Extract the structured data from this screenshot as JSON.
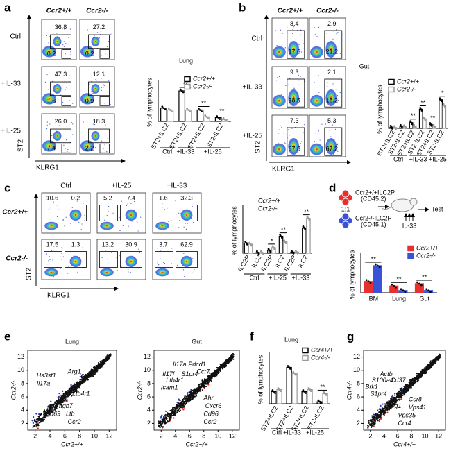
{
  "panel_a": {
    "label": "a",
    "columns": [
      "Ccr2+/+",
      "Ccr2-/-"
    ],
    "rows": [
      "Ctrl",
      "+IL-33",
      "+IL-25"
    ],
    "gates": [
      [
        [
          "36.8",
          "0.2"
        ],
        [
          "27.2",
          "0.2"
        ]
      ],
      [
        [
          "47.3",
          "1.6"
        ],
        [
          "12.1",
          "0.9"
        ]
      ],
      [
        [
          "26.0",
          "7.4"
        ],
        [
          "18.3",
          "2.2"
        ]
      ]
    ],
    "y_axis": "ST2",
    "x_axis": "KLRG1",
    "chart": {
      "type": "bar",
      "title": "Lung",
      "ylabel": "% of lymphocytes",
      "bar_style": "outline",
      "groups": [
        {
          "name": "Ctrl",
          "categories": [
            "ST2+ILC2"
          ]
        },
        {
          "name": "+IL-33",
          "categories": [
            "ST2+ILC2"
          ]
        },
        {
          "name": "+IL-25",
          "categories": [
            "ST2+ILC2",
            "ST2-ILC2"
          ]
        }
      ],
      "series": [
        {
          "name": "Ccr2+/+",
          "color": "#000000",
          "values": [
            0.35,
            0.8,
            0.3,
            0.1
          ]
        },
        {
          "name": "Ccr2-/-",
          "color": "#999999",
          "values": [
            0.3,
            0.3,
            0.12,
            0.05
          ]
        }
      ],
      "significance": [
        null,
        "**",
        "**",
        "**"
      ],
      "ylim": [
        0,
        1
      ]
    }
  },
  "panel_b": {
    "label": "b",
    "title": "Gut",
    "columns": [
      "Ccr2+/+",
      "Ccr2-/-"
    ],
    "rows": [
      "Ctrl",
      "+IL-33",
      "+IL-25"
    ],
    "gates": [
      [
        [
          "8.4",
          "17.6"
        ],
        [
          "2.9",
          "21.2"
        ]
      ],
      [
        [
          "9.3",
          "38.5"
        ],
        [
          "2.1",
          "18.2"
        ]
      ],
      [
        [
          "7.3",
          "67.8"
        ],
        [
          "5.3",
          "67.2"
        ]
      ]
    ],
    "y_axis": "ST2",
    "x_axis": "KLRG1",
    "chart": {
      "type": "bar",
      "ylabel": "% of lymphocytes",
      "bar_style": "outline",
      "groups": [
        {
          "name": "Ctrl",
          "categories": [
            "ST2+ILC2",
            "ST2-ILC2"
          ]
        },
        {
          "name": "+IL-33",
          "categories": [
            "ST2+ILC2",
            "ST2-ILC2"
          ]
        },
        {
          "name": "+IL-25",
          "categories": [
            "ST2+ILC2",
            "ST2-ILC2"
          ]
        }
      ],
      "series": [
        {
          "name": "Ccr2+/+",
          "color": "#000000",
          "values": [
            0.03,
            0.05,
            0.15,
            0.5,
            0.1,
            0.75
          ]
        },
        {
          "name": "Ccr2-/-",
          "color": "#999999",
          "values": [
            0.02,
            0.04,
            0.05,
            0.25,
            0.05,
            0.6
          ]
        }
      ],
      "significance": [
        null,
        null,
        "**",
        "**",
        "**",
        "*"
      ],
      "ylim": [
        0,
        1
      ]
    }
  },
  "panel_c": {
    "label": "c",
    "columns": [
      "Ctrl",
      "+IL-25",
      "+IL-33"
    ],
    "rows": [
      "Ccr2+/+",
      "Ccr2-/-"
    ],
    "gates": [
      [
        [
          "10.6",
          "0.2"
        ],
        [
          "5.2",
          "7.4"
        ],
        [
          "1.6",
          "32.3"
        ]
      ],
      [
        [
          "17.5",
          "1.3"
        ],
        [
          "13.2",
          "30.9"
        ],
        [
          "3.7",
          "62.9"
        ]
      ]
    ],
    "y_axis": "ST2",
    "x_axis": "KLRG1",
    "chart": {
      "type": "bar",
      "ylabel": "% of lymphocytes",
      "bar_style": "outline",
      "legend_boxes": false,
      "groups": [
        {
          "name": "Ctrl",
          "categories": [
            "ILC2P",
            "ILC2"
          ]
        },
        {
          "name": "+IL-25",
          "categories": [
            "ILC2P",
            "ILC2"
          ]
        },
        {
          "name": "+IL-33",
          "categories": [
            "ILC2P",
            "ILC2"
          ]
        }
      ],
      "series": [
        {
          "name": "Ccr2+/+",
          "color": "#000000",
          "values": [
            0.18,
            0.01,
            0.05,
            0.3,
            0.02,
            0.45
          ]
        },
        {
          "name": "Ccr2-/-",
          "color": "#999999",
          "values": [
            0.16,
            0.01,
            0.1,
            0.2,
            0.02,
            0.62
          ]
        }
      ],
      "significance": [
        null,
        null,
        "*",
        "**",
        null,
        "**"
      ],
      "ylim": [
        0,
        0.8
      ]
    }
  },
  "panel_d": {
    "label": "d",
    "schematic": {
      "donor_1": "Ccr2+/+ILC2P",
      "donor_1_marker": "(CD45.2)",
      "ratio": "1:1",
      "donor_2": "Ccr2-/-ILC2P",
      "donor_2_marker": "(CD45.1)",
      "treatment": "IL-33",
      "readout": "Test"
    },
    "chart": {
      "type": "bar",
      "ylabel": "% of lymphocytes",
      "bar_style": "solid",
      "categories": [
        "BM",
        "Lung",
        "Gut"
      ],
      "series": [
        {
          "name": "Ccr2+/+",
          "color": "#e8312f",
          "values": [
            0.25,
            0.15,
            0.2
          ]
        },
        {
          "name": "Ccr2-/-",
          "color": "#3a52d6",
          "values": [
            0.6,
            0.05,
            0.05
          ]
        }
      ],
      "significance": [
        "**",
        "**",
        "**"
      ],
      "ylim": [
        0,
        0.8
      ]
    }
  },
  "panel_e": {
    "label": "e",
    "plots": [
      {
        "type": "scatter",
        "title": "Lung",
        "xlabel": "Ccr2+/+",
        "ylabel": "Ccr2-/-",
        "xlim": [
          1,
          13
        ],
        "ylim": [
          1,
          13
        ],
        "xticks": [
          2,
          4,
          6,
          8,
          10,
          12
        ],
        "yticks": [
          2,
          4,
          6,
          8,
          10,
          12
        ],
        "genes": [
          "Hs3st1",
          "Il17a",
          "Arg1",
          "Icos",
          "Ltb4r1",
          "Itgb7",
          "Cd69",
          "Ltb",
          "Ccr2"
        ]
      },
      {
        "type": "scatter",
        "title": "Gut",
        "xlabel": "Ccr2+/+",
        "ylabel": "Ccr2-/-",
        "xlim": [
          1,
          13
        ],
        "ylim": [
          1,
          13
        ],
        "xticks": [
          2,
          4,
          6,
          8,
          10,
          12
        ],
        "yticks": [
          2,
          4,
          6,
          8,
          10,
          12
        ],
        "genes": [
          "Il17a",
          "Pdcd1",
          "Il17f",
          "S1pr4",
          "Ccr7",
          "Ltb4r1",
          "Icam1",
          "Ahr",
          "Cxcr6",
          "Cd96",
          "Ccr2"
        ]
      }
    ]
  },
  "panel_f": {
    "label": "f",
    "chart": {
      "type": "bar",
      "title": "Lung",
      "ylabel": "% of lymphocytes",
      "bar_style": "outline",
      "groups": [
        {
          "name": "Ctrl",
          "categories": [
            "ST2+ILC2"
          ]
        },
        {
          "name": "+IL-33",
          "categories": [
            "ST2+ILC2"
          ]
        },
        {
          "name": "+IL-25",
          "categories": [
            "ST2+ILC2",
            "ST2-ILC2"
          ]
        }
      ],
      "series": [
        {
          "name": "Ccr4+/+",
          "color": "#000000",
          "values": [
            0.3,
            0.9,
            0.3,
            0.05
          ]
        },
        {
          "name": "Ccr4-/-",
          "color": "#999999",
          "values": [
            0.35,
            0.75,
            0.35,
            0.25
          ]
        }
      ],
      "significance": [
        null,
        null,
        null,
        "**"
      ],
      "ylim": [
        0,
        1.2
      ]
    }
  },
  "panel_g": {
    "label": "g",
    "plot": {
      "type": "scatter",
      "xlabel": "Ccr4+/+",
      "ylabel": "Ccr4-/-",
      "xlim": [
        1,
        13
      ],
      "ylim": [
        1,
        13
      ],
      "xticks": [
        2,
        4,
        6,
        8,
        10,
        12
      ],
      "yticks": [
        2,
        4,
        6,
        8,
        10,
        12
      ],
      "genes": [
        "Actb",
        "S100a4",
        "Brk1",
        "Cd37",
        "S1pr4",
        "Ccr8",
        "Arg1",
        "Vps41",
        "Vps35",
        "Ccr4"
      ]
    }
  }
}
